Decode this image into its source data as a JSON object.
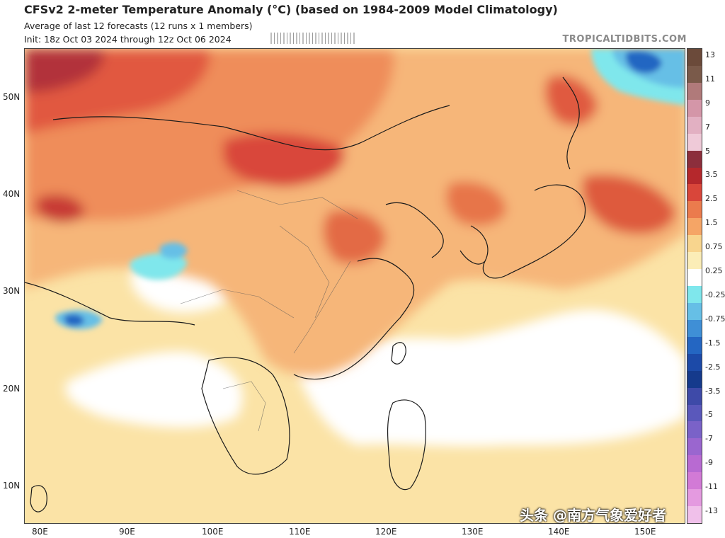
{
  "header": {
    "title": "CFSv2 2-meter Temperature Anomaly (°C) (based on 1984-2009 Model Climatology)",
    "subtitle_line1": "Average of last 12 forecasts (12 runs x 1 members)",
    "subtitle_line2": "Init: 18z Oct 03 2024 through 12z Oct 06 2024",
    "brand": "TROPICALTIDBITS.COM"
  },
  "map": {
    "lat_labels": [
      "50N",
      "40N",
      "30N",
      "20N",
      "10N"
    ],
    "lon_labels": [
      "80E",
      "90E",
      "100E",
      "110E",
      "120E",
      "130E",
      "140E",
      "150E"
    ]
  },
  "colorbar": {
    "labels": [
      "13",
      "11",
      "9",
      "7",
      "5",
      "3.5",
      "2.5",
      "1.5",
      "0.75",
      "0.25",
      "-0.25",
      "-0.75",
      "-1.5",
      "-2.5",
      "-3.5",
      "-5",
      "-7",
      "-9",
      "-11",
      "-13"
    ],
    "colors": [
      "#6b4a3a",
      "#7a5a4a",
      "#b07a7a",
      "#d496a8",
      "#e2b0c2",
      "#efcad8",
      "#8c2e3c",
      "#b5282c",
      "#d9463a",
      "#eb7b4d",
      "#f5a566",
      "#f8d58e",
      "#fbedb7",
      "#ffffff",
      "#7fe7ec",
      "#66bfe6",
      "#3f8fd6",
      "#2466c2",
      "#1c4aa8",
      "#153a8c",
      "#3e4aa8",
      "#5a58bb",
      "#7a62c8",
      "#9a66cf",
      "#b86ad2",
      "#d27ad6",
      "#e49ae0",
      "#f0c0ea"
    ]
  },
  "watermark": "头条 @南方气象爱好者"
}
